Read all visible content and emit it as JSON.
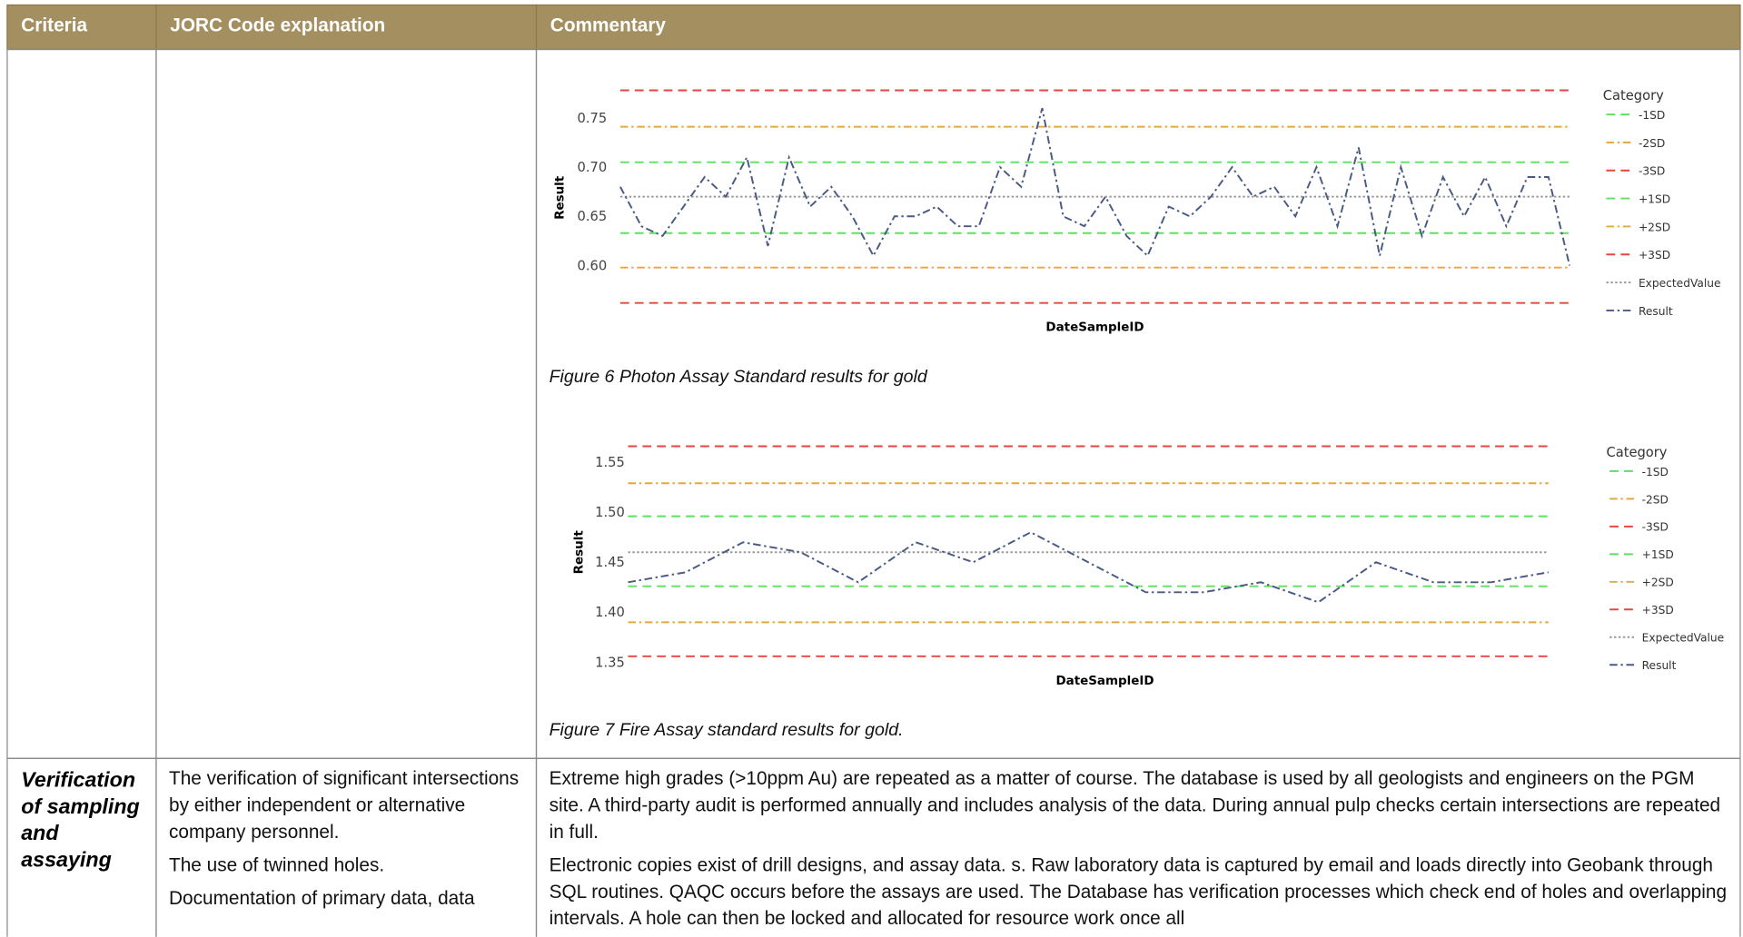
{
  "header": [
    "Criteria",
    "JORC Code explanation",
    "Commentary"
  ],
  "figures": [
    {
      "chart": {
        "type": "line",
        "x_label": "DateSampleID",
        "y_label": "Result",
        "legend_title": "Category",
        "legend": "right",
        "ylim": [
          0.55,
          0.79
        ],
        "yticks": [
          {
            "value": 0.6,
            "label": "0.60"
          },
          {
            "value": 0.65,
            "label": "0.65"
          },
          {
            "value": 0.7,
            "label": "0.70"
          },
          {
            "value": 0.75,
            "label": "0.75"
          }
        ],
        "series": [
          {
            "name": "-1SD",
            "color": "#5fe05f",
            "style": "dashed",
            "value": 0.633
          },
          {
            "name": "-2SD",
            "color": "#e6a83a",
            "style": "dashdot",
            "value": 0.598
          },
          {
            "name": "-3SD",
            "color": "#e8453c",
            "style": "dashed",
            "value": 0.562
          },
          {
            "name": "+1SD",
            "color": "#5fe05f",
            "style": "dashed",
            "value": 0.705
          },
          {
            "name": "+2SD",
            "color": "#e6a83a",
            "style": "dashdot",
            "value": 0.741
          },
          {
            "name": "+3SD",
            "color": "#e8453c",
            "style": "dashed",
            "value": 0.778
          },
          {
            "name": "ExpectedValue",
            "color": "#9a9a9a",
            "style": "dotted",
            "value": 0.67
          },
          {
            "name": "Result",
            "color": "#4a5a85",
            "style": "dashdot",
            "values": [
              0.68,
              0.64,
              0.63,
              0.66,
              0.69,
              0.67,
              0.71,
              0.62,
              0.71,
              0.66,
              0.68,
              0.65,
              0.61,
              0.65,
              0.65,
              0.66,
              0.64,
              0.64,
              0.7,
              0.68,
              0.76,
              0.65,
              0.64,
              0.67,
              0.63,
              0.61,
              0.66,
              0.65,
              0.67,
              0.7,
              0.67,
              0.68,
              0.65,
              0.7,
              0.64,
              0.72,
              0.61,
              0.7,
              0.63,
              0.69,
              0.65,
              0.69,
              0.64,
              0.69,
              0.69,
              0.6
            ]
          }
        ]
      },
      "caption": "Figure 6 Photon Assay Standard results for gold"
    },
    {
      "chart": {
        "type": "line",
        "x_label": "DateSampleID",
        "y_label": "Result",
        "legend_title": "Category",
        "legend": "right",
        "ylim": [
          1.34,
          1.58
        ],
        "yticks": [
          {
            "value": 1.35,
            "label": "1.35"
          },
          {
            "value": 1.4,
            "label": "1.40"
          },
          {
            "value": 1.45,
            "label": "1.45"
          },
          {
            "value": 1.5,
            "label": "1.50"
          },
          {
            "value": 1.55,
            "label": "1.55"
          }
        ],
        "series": [
          {
            "name": "-1SD",
            "color": "#5fe05f",
            "style": "dashed",
            "value": 1.426
          },
          {
            "name": "-2SD",
            "color": "#e6a83a",
            "style": "dashdot",
            "value": 1.39
          },
          {
            "name": "-3SD",
            "color": "#e8453c",
            "style": "dashed",
            "value": 1.356
          },
          {
            "name": "+1SD",
            "color": "#5fe05f",
            "style": "dashed",
            "value": 1.496
          },
          {
            "name": "+2SD",
            "color": "#e6a83a",
            "style": "dashdot",
            "value": 1.529
          },
          {
            "name": "+3SD",
            "color": "#e8453c",
            "style": "dashed",
            "value": 1.566
          },
          {
            "name": "ExpectedValue",
            "color": "#9a9a9a",
            "style": "dotted",
            "value": 1.46
          },
          {
            "name": "Result",
            "color": "#4a5a85",
            "style": "dashdot",
            "values": [
              1.43,
              1.44,
              1.47,
              1.46,
              1.43,
              1.47,
              1.45,
              1.48,
              1.45,
              1.42,
              1.42,
              1.43,
              1.41,
              1.45,
              1.43,
              1.43,
              1.44
            ]
          }
        ]
      },
      "caption": "Figure 7 Fire Assay standard results for gold."
    }
  ],
  "row": {
    "criteria": "Verification of sampling and assaying",
    "explanation": [
      "The verification of significant intersections by either independent or alternative company personnel.",
      "The use of twinned holes.",
      "Documentation of primary data, data"
    ],
    "commentary": [
      "Extreme high grades (>10ppm Au) are repeated as a matter of course. The database is used by all geologists and engineers on the PGM site. A third-party audit is performed annually and includes analysis of the data. During annual pulp checks certain intersections are repeated in full.",
      "Electronic copies exist of drill designs, and assay data. s. Raw laboratory data is captured by email and loads directly into Geobank through SQL routines. QAQC occurs before the assays are used. The Database has verification processes which check end of holes and overlapping intervals. A hole can then be locked and allocated for resource work once all"
    ]
  }
}
